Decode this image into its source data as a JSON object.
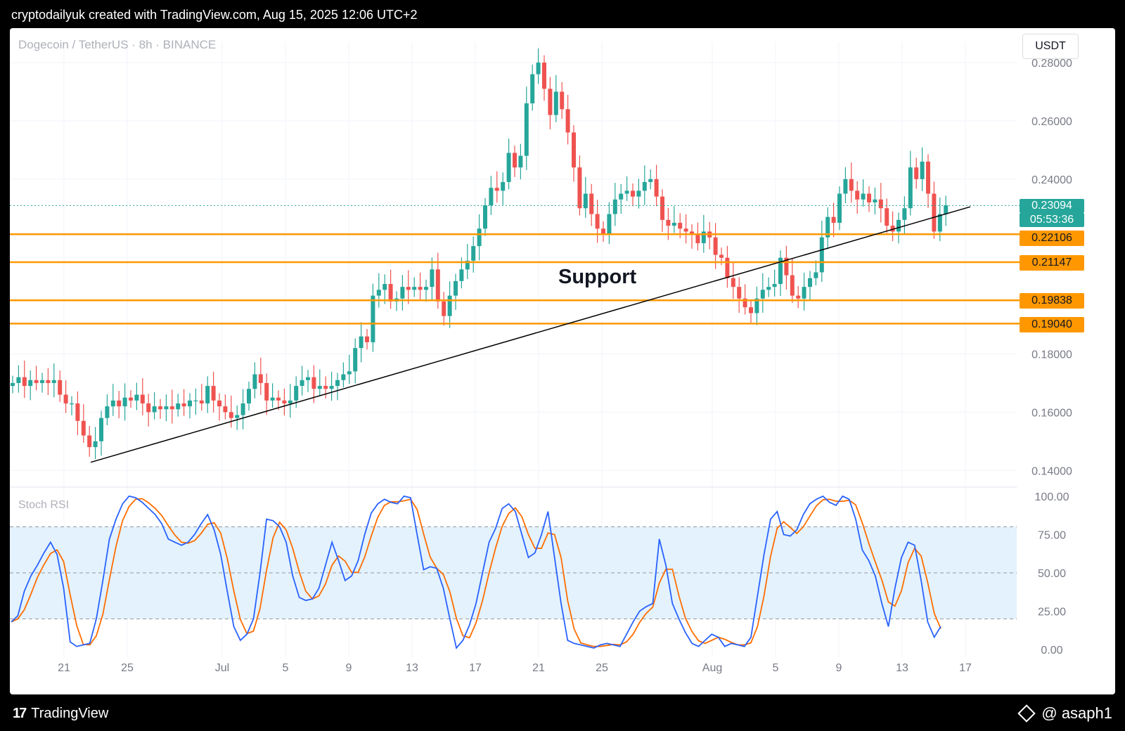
{
  "attribution": "cryptodailyuk created with TradingView.com, Aug 15, 2025 12:06 UTC+2",
  "symbol_label": "Dogecoin / TetherUS · 8h · BINANCE",
  "currency": "USDT",
  "footer": {
    "logo_text": "TradingView",
    "author": "@ asaph1"
  },
  "colors": {
    "up": "#26a69a",
    "down": "#ef5350",
    "support": "#ff9800",
    "trendline": "#000000",
    "stoch_k": "#2962ff",
    "stoch_d": "#ff6d00",
    "stoch_band": "#e3f2fd"
  },
  "chart_data": [
    {
      "type": "candlestick",
      "ylim": [
        0.135,
        0.287
      ],
      "y_ticks": [
        "0.14000",
        "0.16000",
        "0.18000",
        "0.24000",
        "0.26000",
        "0.28000"
      ],
      "x_ticks": [
        "21",
        "25",
        "Jul",
        "5",
        "9",
        "13",
        "17",
        "21",
        "25",
        "Aug",
        "5",
        "9",
        "13",
        "17"
      ],
      "current_price": "0.23094",
      "countdown": "05:53:36",
      "support_levels": [
        "0.22106",
        "0.21147",
        "0.19838",
        "0.19040"
      ],
      "annotation": "Support",
      "trendline": [
        [
          0.1,
          0.1428
        ],
        [
          1.0,
          0.2305
        ]
      ],
      "closes": [
        0.17,
        0.172,
        0.169,
        0.171,
        0.17,
        0.171,
        0.17,
        0.171,
        0.166,
        0.163,
        0.163,
        0.157,
        0.152,
        0.148,
        0.15,
        0.158,
        0.162,
        0.164,
        0.162,
        0.165,
        0.164,
        0.166,
        0.163,
        0.16,
        0.162,
        0.161,
        0.162,
        0.161,
        0.163,
        0.162,
        0.164,
        0.164,
        0.163,
        0.169,
        0.164,
        0.162,
        0.16,
        0.158,
        0.159,
        0.163,
        0.168,
        0.173,
        0.17,
        0.164,
        0.165,
        0.164,
        0.163,
        0.164,
        0.169,
        0.171,
        0.172,
        0.168,
        0.169,
        0.168,
        0.169,
        0.171,
        0.173,
        0.174,
        0.182,
        0.186,
        0.184,
        0.2,
        0.202,
        0.204,
        0.198,
        0.199,
        0.203,
        0.202,
        0.203,
        0.202,
        0.203,
        0.209,
        0.198,
        0.193,
        0.2,
        0.205,
        0.209,
        0.212,
        0.217,
        0.223,
        0.231,
        0.237,
        0.236,
        0.239,
        0.249,
        0.244,
        0.248,
        0.266,
        0.276,
        0.28,
        0.271,
        0.262,
        0.27,
        0.264,
        0.256,
        0.244,
        0.23,
        0.235,
        0.228,
        0.223,
        0.221,
        0.228,
        0.233,
        0.235,
        0.236,
        0.234,
        0.236,
        0.239,
        0.24,
        0.234,
        0.226,
        0.224,
        0.225,
        0.223,
        0.222,
        0.221,
        0.218,
        0.222,
        0.22,
        0.214,
        0.213,
        0.206,
        0.203,
        0.199,
        0.196,
        0.194,
        0.199,
        0.202,
        0.203,
        0.204,
        0.213,
        0.207,
        0.2,
        0.199,
        0.203,
        0.206,
        0.208,
        0.22,
        0.227,
        0.225,
        0.235,
        0.24,
        0.236,
        0.233,
        0.235,
        0.232,
        0.233,
        0.23,
        0.224,
        0.222,
        0.226,
        0.23,
        0.244,
        0.24,
        0.246,
        0.235,
        0.222,
        0.228,
        0.231
      ]
    },
    {
      "type": "line",
      "title": "Stoch RSI",
      "ylim": [
        -5,
        105
      ],
      "y_ticks": [
        "0.00",
        "25.00",
        "50.00",
        "75.00",
        "100.00"
      ],
      "band": [
        20,
        80
      ],
      "series": [
        {
          "values": [
            18,
            22,
            38,
            48,
            55,
            63,
            70,
            62,
            40,
            5,
            2,
            3,
            4,
            20,
            45,
            72,
            85,
            95,
            100,
            99,
            96,
            92,
            88,
            82,
            72,
            70,
            68,
            70,
            75,
            82,
            88,
            78,
            62,
            38,
            15,
            6,
            10,
            20,
            50,
            85,
            84,
            80,
            70,
            48,
            34,
            32,
            33,
            40,
            55,
            70,
            58,
            45,
            48,
            58,
            75,
            89,
            95,
            98,
            96,
            95,
            100,
            99,
            75,
            52,
            54,
            53,
            40,
            20,
            1,
            6,
            16,
            30,
            50,
            70,
            79,
            92,
            95,
            90,
            75,
            60,
            63,
            75,
            90,
            60,
            30,
            6,
            4,
            3,
            2,
            1,
            3,
            4,
            3,
            2,
            10,
            18,
            25,
            28,
            30,
            72,
            55,
            30,
            20,
            11,
            4,
            2,
            6,
            10,
            8,
            2,
            4,
            3,
            2,
            8,
            35,
            62,
            85,
            90,
            75,
            74,
            78,
            88,
            95,
            98,
            100,
            96,
            94,
            100,
            98,
            85,
            65,
            58,
            48,
            30,
            15,
            40,
            60,
            70,
            68,
            45,
            18,
            8,
            15
          ]
        }
      ]
    }
  ]
}
